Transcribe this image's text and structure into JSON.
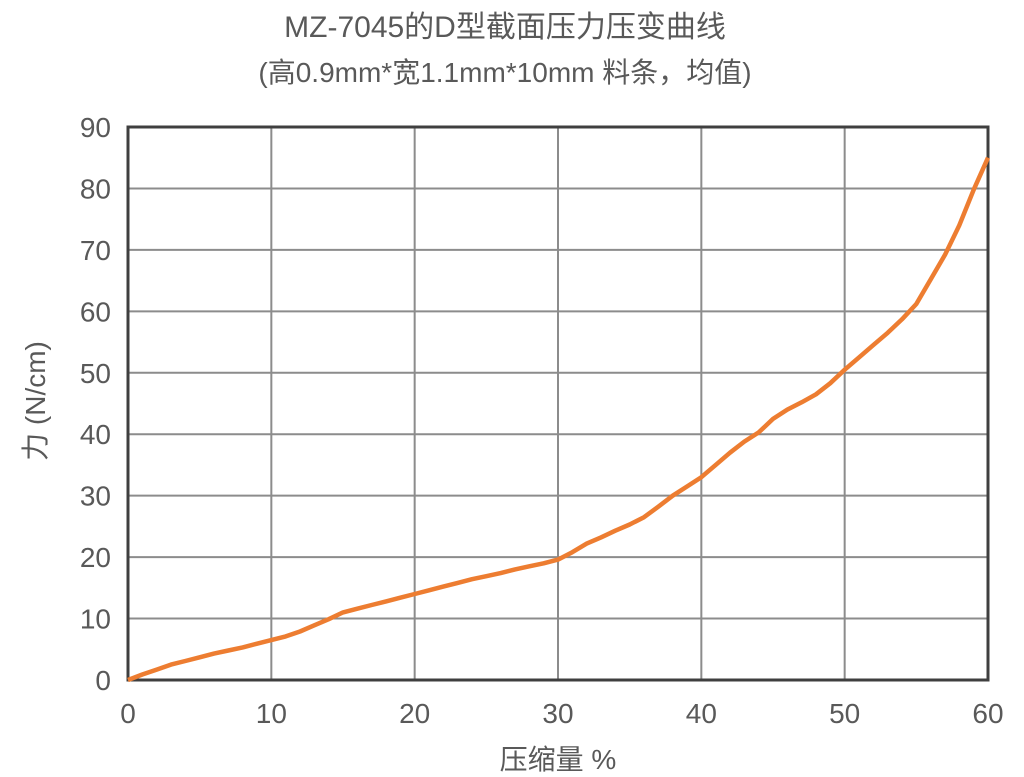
{
  "header": {
    "title": "MZ-7045的D型截面压力压变曲线",
    "subtitle": "(高0.9mm*宽1.1mm*10mm 料条，均值)"
  },
  "colors": {
    "line": "#ED7D31",
    "grid": "#8C8C8C",
    "border": "#3F3F3F",
    "text": "#595959",
    "background": "#FFFFFF"
  },
  "chart_data": {
    "type": "line",
    "title": "MZ-7045的D型截面压力压变曲线",
    "subtitle": "(高0.9mm*宽1.1mm*10mm 料条，均值)",
    "xlabel": "压缩量 %",
    "ylabel": "力 (N/cm)",
    "xlim": [
      0,
      60
    ],
    "ylim": [
      0,
      90
    ],
    "xticks": [
      0,
      10,
      20,
      30,
      40,
      50,
      60
    ],
    "yticks": [
      0,
      10,
      20,
      30,
      40,
      50,
      60,
      70,
      80,
      90
    ],
    "grid": true,
    "legend": false,
    "series": [
      {
        "color": "#ED7D31",
        "points": [
          [
            0,
            0
          ],
          [
            1,
            0.9
          ],
          [
            2,
            1.7
          ],
          [
            3,
            2.5
          ],
          [
            4,
            3.1
          ],
          [
            5,
            3.7
          ],
          [
            6,
            4.3
          ],
          [
            7,
            4.8
          ],
          [
            8,
            5.3
          ],
          [
            9,
            5.9
          ],
          [
            10,
            6.5
          ],
          [
            11,
            7.1
          ],
          [
            12,
            7.9
          ],
          [
            13,
            8.9
          ],
          [
            14,
            9.9
          ],
          [
            15,
            11.0
          ],
          [
            16,
            11.6
          ],
          [
            17,
            12.2
          ],
          [
            18,
            12.8
          ],
          [
            19,
            13.4
          ],
          [
            20,
            14.0
          ],
          [
            21,
            14.6
          ],
          [
            22,
            15.2
          ],
          [
            23,
            15.8
          ],
          [
            24,
            16.4
          ],
          [
            25,
            16.9
          ],
          [
            26,
            17.4
          ],
          [
            27,
            18.0
          ],
          [
            28,
            18.5
          ],
          [
            29,
            19.0
          ],
          [
            30,
            19.6
          ],
          [
            31,
            20.8
          ],
          [
            32,
            22.2
          ],
          [
            33,
            23.2
          ],
          [
            34,
            24.3
          ],
          [
            35,
            25.3
          ],
          [
            36,
            26.5
          ],
          [
            37,
            28.2
          ],
          [
            38,
            30.0
          ],
          [
            39,
            31.5
          ],
          [
            40,
            33.0
          ],
          [
            41,
            35.0
          ],
          [
            42,
            37.0
          ],
          [
            43,
            38.8
          ],
          [
            44,
            40.3
          ],
          [
            45,
            42.5
          ],
          [
            46,
            44.0
          ],
          [
            47,
            45.2
          ],
          [
            48,
            46.5
          ],
          [
            49,
            48.3
          ],
          [
            50,
            50.5
          ],
          [
            51,
            52.5
          ],
          [
            52,
            54.5
          ],
          [
            53,
            56.5
          ],
          [
            54,
            58.7
          ],
          [
            55,
            61.2
          ],
          [
            56,
            65.2
          ],
          [
            57,
            69.2
          ],
          [
            58,
            74.0
          ],
          [
            59,
            79.8
          ],
          [
            60,
            85.0
          ]
        ]
      }
    ]
  }
}
